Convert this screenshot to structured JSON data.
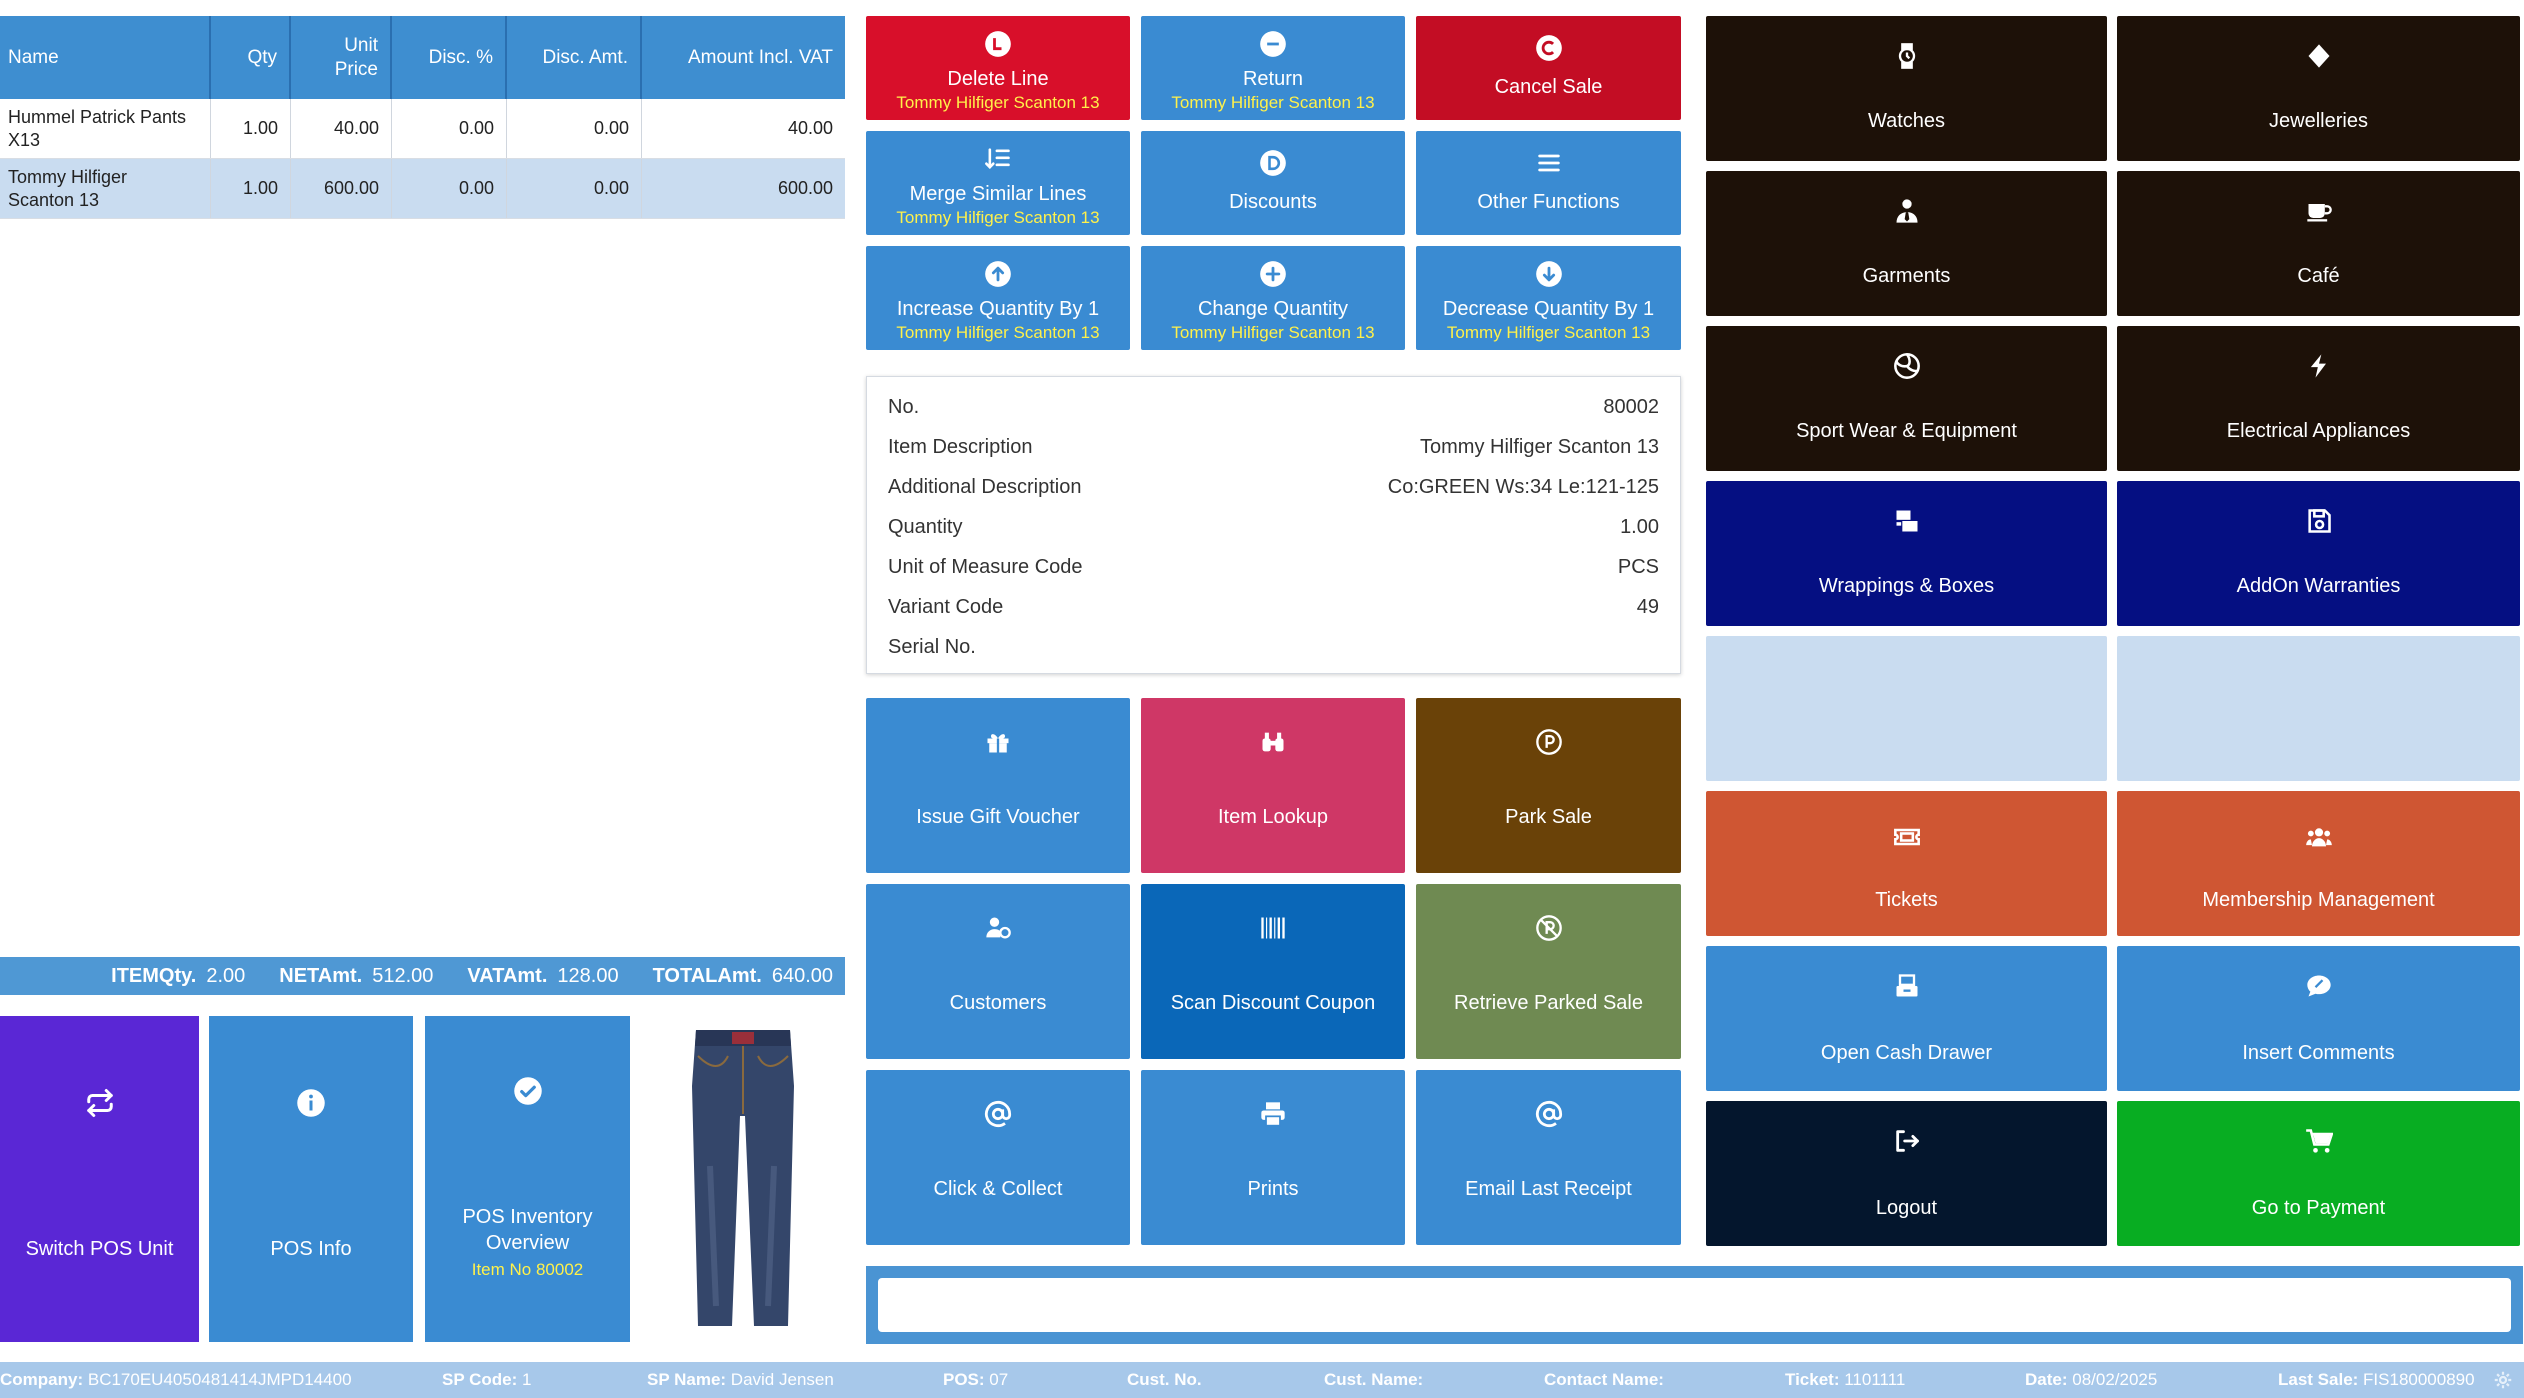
{
  "lines_table": {
    "headers": {
      "name": "Name",
      "qty": "Qty",
      "unit_price_line1": "Unit",
      "unit_price_line2": "Price",
      "disc_pct": "Disc. %",
      "disc_amt": "Disc. Amt.",
      "amount": "Amount Incl. VAT"
    },
    "rows": [
      {
        "name_line1": "Hummel Patrick Pants",
        "name_line2": "X13",
        "qty": "1.00",
        "unit_price": "40.00",
        "disc_pct": "0.00",
        "disc_amt": "0.00",
        "amount": "40.00"
      },
      {
        "name_line1": "Tommy Hilfiger",
        "name_line2": "Scanton 13",
        "qty": "1.00",
        "unit_price": "600.00",
        "disc_pct": "0.00",
        "disc_amt": "0.00",
        "amount": "600.00"
      }
    ]
  },
  "totals": {
    "item_qty_label": "ITEMQty.",
    "item_qty": "2.00",
    "net_label": "NETAmt.",
    "net": "512.00",
    "vat_label": "VATAmt.",
    "vat": "128.00",
    "total_label": "TOTALAmt.",
    "total": "640.00"
  },
  "bottom_tiles": {
    "switch_pos": "Switch POS Unit",
    "pos_info": "POS Info",
    "inventory_line1": "POS Inventory",
    "inventory_line2": "Overview",
    "inventory_sub": "Item No 80002"
  },
  "line_actions": {
    "delete_line": "Delete Line",
    "return": "Return",
    "cancel_sale": "Cancel Sale",
    "merge": "Merge Similar Lines",
    "discounts": "Discounts",
    "other_functions": "Other Functions",
    "increase": "Increase Quantity By 1",
    "change": "Change Quantity",
    "decrease": "Decrease Quantity By 1",
    "item_context": "Tommy Hilfiger Scanton 13"
  },
  "item_info": {
    "no_label": "No.",
    "no": "80002",
    "desc_label": "Item Description",
    "desc": "Tommy Hilfiger Scanton 13",
    "add_desc_label": "Additional Description",
    "add_desc": "Co:GREEN Ws:34 Le:121-125",
    "qty_label": "Quantity",
    "qty": "1.00",
    "uom_label": "Unit of Measure Code",
    "uom": "PCS",
    "variant_label": "Variant Code",
    "variant": "49",
    "serial_label": "Serial No.",
    "serial": ""
  },
  "functions": {
    "gift_voucher": "Issue Gift Voucher",
    "item_lookup": "Item Lookup",
    "park_sale": "Park Sale",
    "customers": "Customers",
    "scan_coupon": "Scan Discount Coupon",
    "retrieve_parked": "Retrieve Parked Sale",
    "click_collect": "Click & Collect",
    "prints": "Prints",
    "email_receipt": "Email Last Receipt"
  },
  "menu": {
    "watches": "Watches",
    "jewelleries": "Jewelleries",
    "garments": "Garments",
    "cafe": "Café",
    "sport": "Sport Wear & Equipment",
    "electrical": "Electrical Appliances",
    "wrappings": "Wrappings & Boxes",
    "warranties": "AddOn Warranties",
    "tickets": "Tickets",
    "membership": "Membership Management",
    "cash_drawer": "Open Cash Drawer",
    "comments": "Insert Comments",
    "logout": "Logout",
    "payment": "Go to Payment"
  },
  "input": {
    "value": ""
  },
  "status": {
    "company_label": "Company:",
    "company": "BC170EU4050481414JMPD14400",
    "sp_code_label": "SP Code:",
    "sp_code": "1",
    "sp_name_label": "SP Name:",
    "sp_name": "David Jensen",
    "pos_label": "POS:",
    "pos": "07",
    "cust_no_label": "Cust. No.",
    "cust_no": "",
    "cust_name_label": "Cust. Name:",
    "cust_name": "",
    "contact_label": "Contact Name:",
    "contact": "",
    "ticket_label": "Ticket:",
    "ticket": "1101111",
    "date_label": "Date:",
    "date": "08/02/2025",
    "last_sale_label": "Last Sale:",
    "last_sale": "FIS180000890"
  },
  "colors": {
    "blue": "#3a8bd2",
    "red": "#d80f2a",
    "dark_red": "#c30d24",
    "pink": "#cf3766",
    "brown": "#6a4208",
    "olive": "#6f8a52",
    "dark_blue_btn": "#0a67b8",
    "menu_dark": "#1d1108",
    "navy": "#050f82",
    "empty": "#c9dcf0",
    "orange": "#cf5633",
    "midnight": "#04162d",
    "green": "#08ad22",
    "purple": "#5a27d5"
  }
}
